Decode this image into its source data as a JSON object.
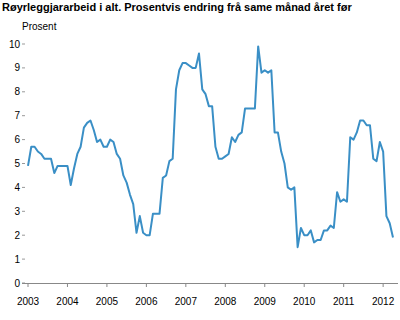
{
  "chart_data": {
    "type": "line",
    "title": "Røyrleggjararbeid i alt. Prosentvis endring frå same månad året før",
    "y_label": "Prosent",
    "categories": [
      "2003",
      null,
      null,
      null,
      null,
      null,
      null,
      null,
      null,
      null,
      null,
      null,
      "2004",
      null,
      null,
      null,
      null,
      null,
      null,
      null,
      null,
      null,
      null,
      null,
      "2005",
      null,
      null,
      null,
      null,
      null,
      null,
      null,
      null,
      null,
      null,
      null,
      "2006",
      null,
      null,
      null,
      null,
      null,
      null,
      null,
      null,
      null,
      null,
      null,
      "2007",
      null,
      null,
      null,
      null,
      null,
      null,
      null,
      null,
      null,
      null,
      null,
      "2008",
      null,
      null,
      null,
      null,
      null,
      null,
      null,
      null,
      null,
      null,
      null,
      "2009",
      null,
      null,
      null,
      null,
      null,
      null,
      null,
      null,
      null,
      null,
      null,
      "2010",
      null,
      null,
      null,
      null,
      null,
      null,
      null,
      null,
      null,
      null,
      null,
      "2011",
      null,
      null,
      null,
      null,
      null,
      null,
      null,
      null,
      null,
      null,
      null,
      "2012",
      null,
      null,
      null
    ],
    "series": [
      {
        "name": "Røyrleggjararbeid i alt",
        "color": "#3a8fc6",
        "values": [
          4.9,
          5.7,
          5.7,
          5.5,
          5.4,
          5.2,
          5.2,
          5.2,
          4.6,
          4.9,
          4.9,
          4.9,
          4.9,
          4.1,
          4.8,
          5.4,
          5.7,
          6.5,
          6.7,
          6.8,
          6.4,
          5.9,
          6.0,
          5.7,
          5.7,
          6.0,
          5.9,
          5.4,
          5.2,
          4.5,
          4.2,
          3.7,
          3.3,
          2.1,
          2.8,
          2.1,
          2.0,
          2.0,
          2.9,
          2.9,
          2.9,
          4.4,
          4.5,
          5.1,
          5.2,
          8.1,
          8.9,
          9.2,
          9.2,
          9.1,
          9.0,
          9.0,
          9.6,
          8.1,
          7.9,
          7.4,
          7.4,
          5.7,
          5.2,
          5.2,
          5.3,
          5.4,
          6.1,
          5.9,
          6.2,
          6.3,
          7.3,
          7.3,
          7.3,
          7.3,
          9.9,
          8.8,
          8.9,
          8.8,
          8.9,
          6.3,
          6.3,
          5.5,
          5.0,
          4.0,
          3.9,
          4.0,
          1.5,
          2.3,
          2.0,
          2.0,
          2.2,
          1.7,
          1.8,
          1.8,
          2.2,
          2.2,
          2.4,
          2.3,
          3.8,
          3.4,
          3.5,
          3.4,
          6.1,
          6.0,
          6.3,
          6.8,
          6.8,
          6.6,
          6.6,
          5.2,
          5.1,
          5.9,
          5.5,
          2.8,
          2.5,
          1.9
        ]
      }
    ],
    "ylim": [
      0,
      10
    ],
    "yticks": [
      0,
      1,
      2,
      3,
      4,
      5,
      6,
      7,
      8,
      9,
      10
    ],
    "grid": false
  }
}
